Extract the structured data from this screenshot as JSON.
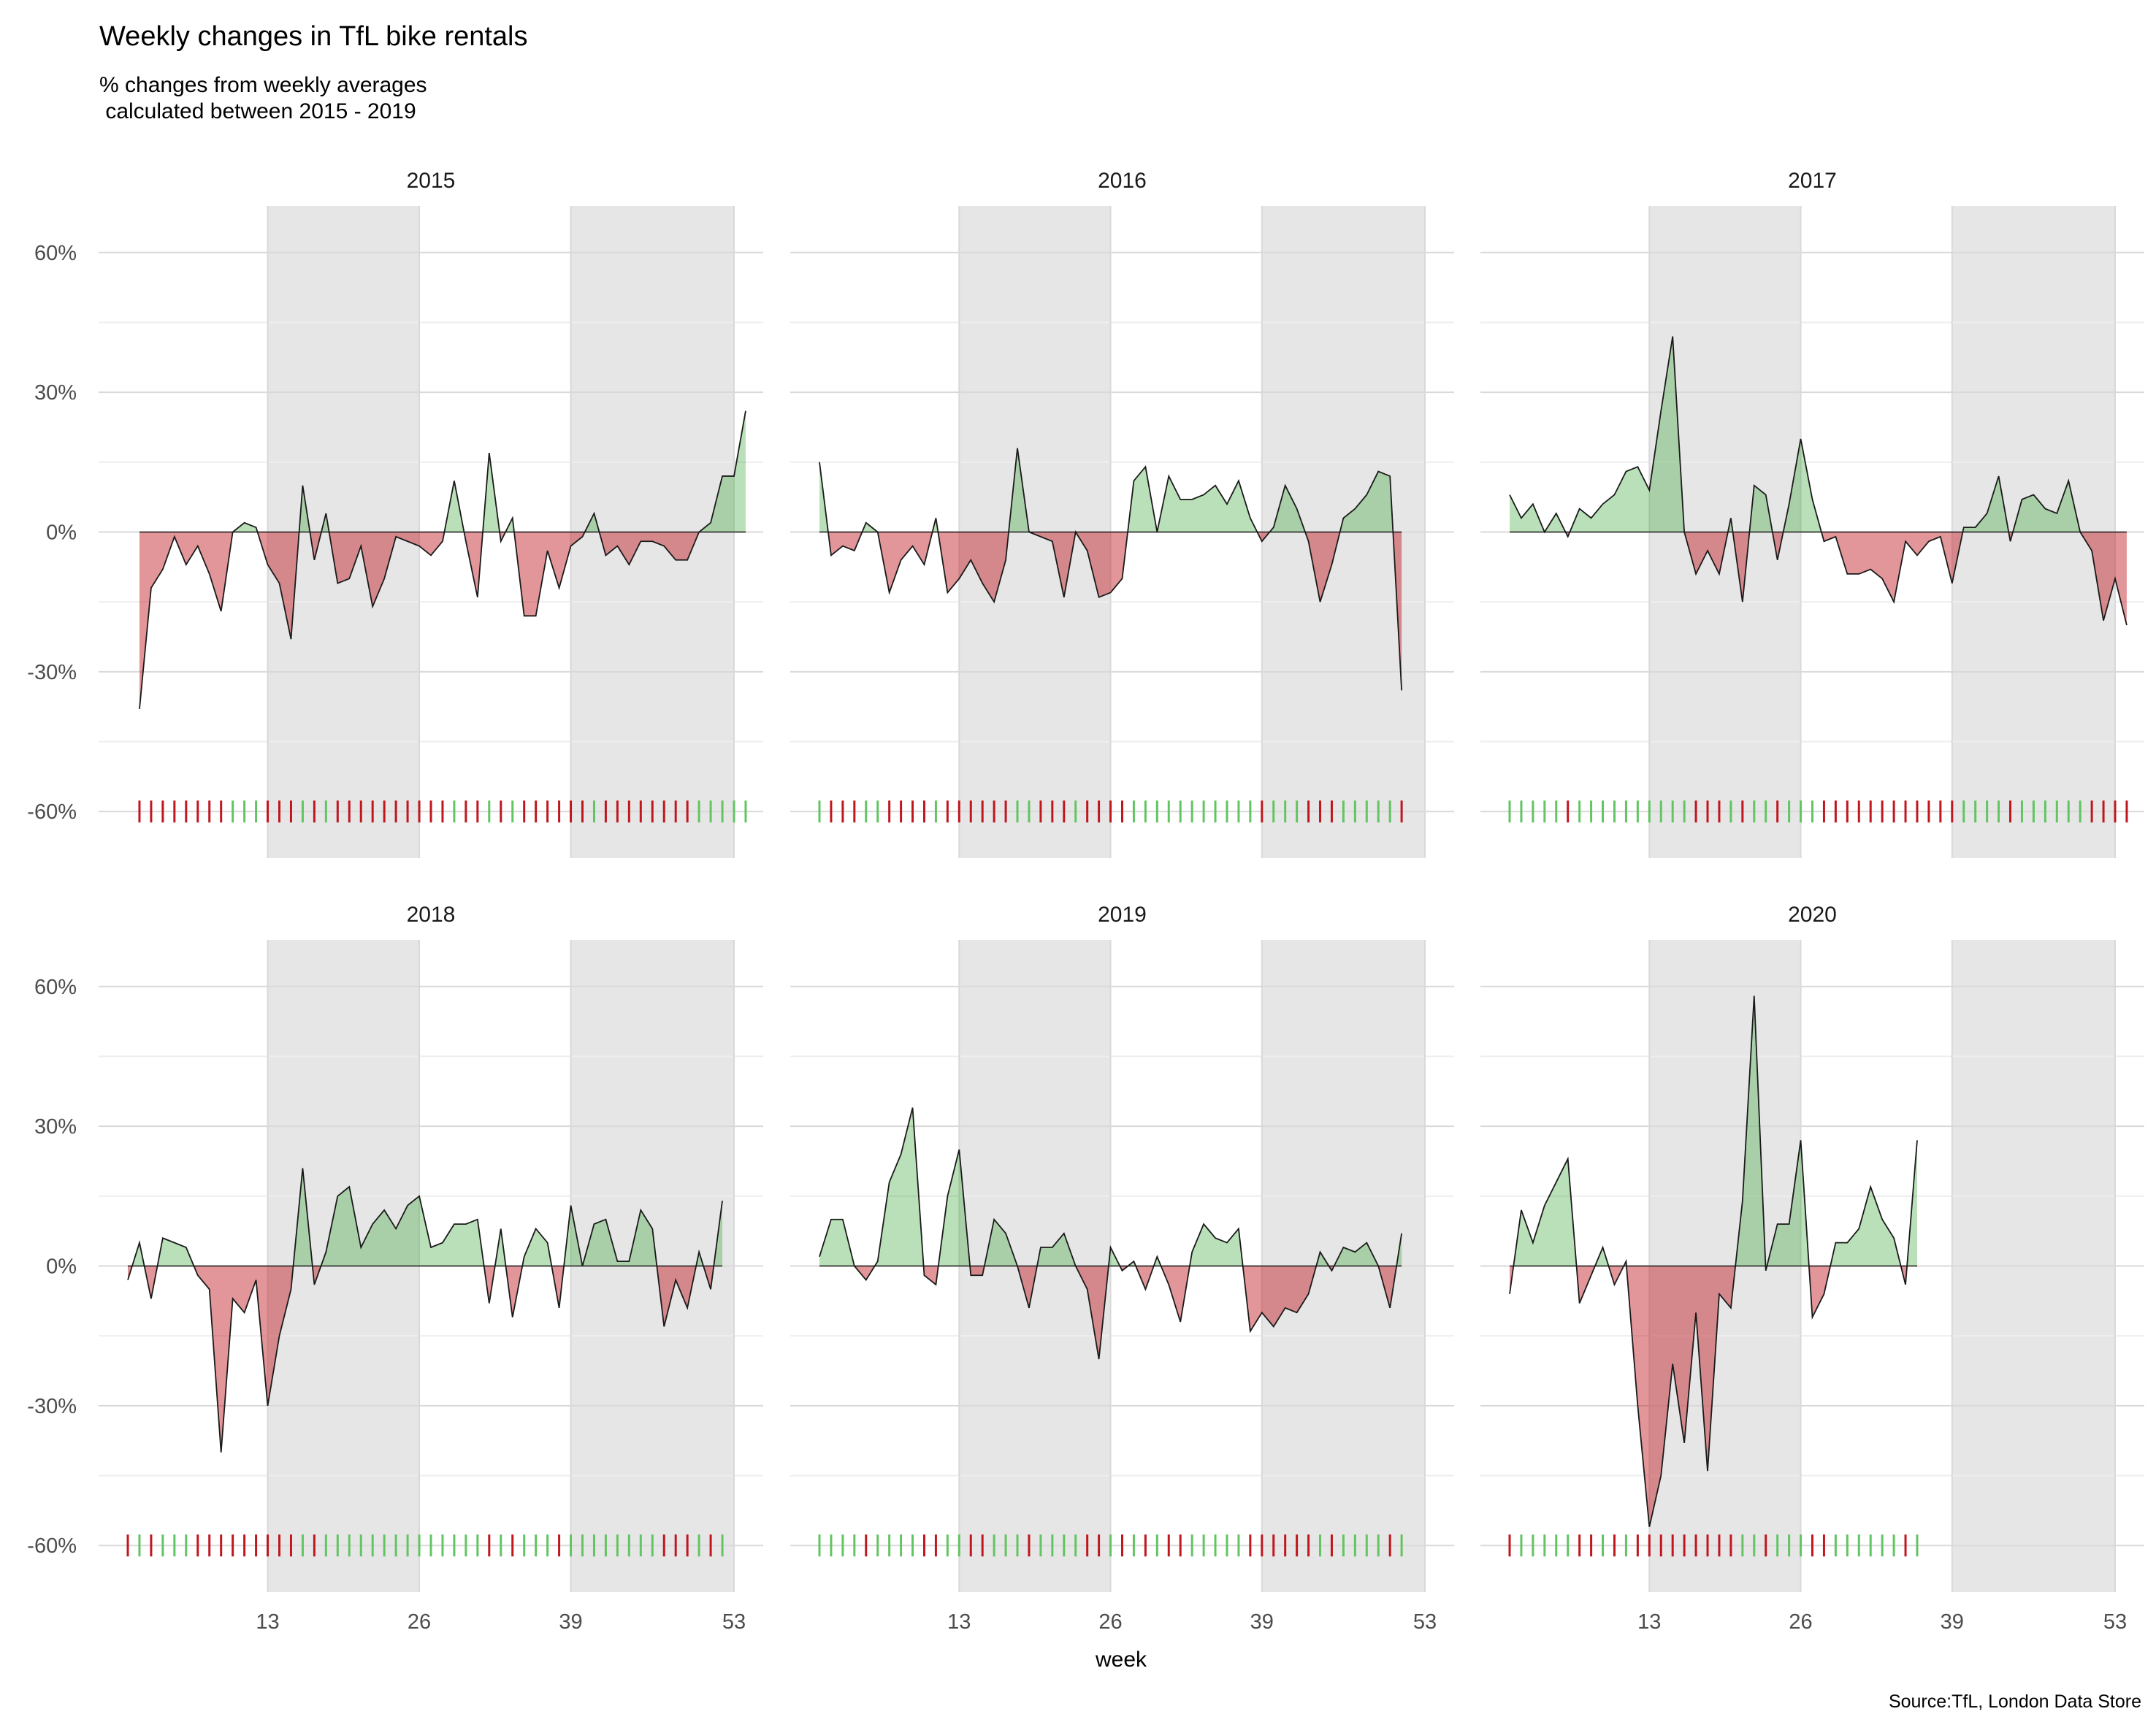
{
  "title": "Weekly changes in TfL bike rentals",
  "subtitle_line1": "% changes from weekly averages",
  "subtitle_line2": " calculated between 2015 - 2019",
  "xlabel": "week",
  "caption": "Source:TfL, London Data Store",
  "colors": {
    "positive": "#2ca02c",
    "negative": "#c0161e",
    "line": "#1a1a1a",
    "shade": "#e6e6e6",
    "grid": "#d9d9d9"
  },
  "chart_data": {
    "type": "area",
    "y_ticks": [
      "60%",
      "30%",
      "0%",
      "-30%",
      "-60%"
    ],
    "y_tick_values": [
      60,
      30,
      0,
      -30,
      -60
    ],
    "x_ticks": [
      "13",
      "26",
      "39",
      "53"
    ],
    "x_tick_values": [
      13,
      26,
      39,
      53
    ],
    "ylim": [
      -60,
      60
    ],
    "xlim": [
      1,
      53
    ],
    "shaded_weeks": [
      [
        13,
        26
      ],
      [
        39,
        53
      ]
    ],
    "baseline": 0,
    "rug": "one tick per week at -60%, green where the week is above average, red where below",
    "panels": [
      {
        "year": "2015",
        "start_week": 2,
        "values": [
          -38,
          -12,
          -8,
          -1,
          -7,
          -3,
          -9,
          -17,
          0,
          2,
          1,
          -7,
          -11,
          -23,
          10,
          -6,
          4,
          -11,
          -10,
          -3,
          -16,
          -10,
          -1,
          -2,
          -3,
          -5,
          -2,
          11,
          -2,
          -14,
          17,
          -2,
          3,
          -18,
          -18,
          -4,
          -12,
          -3,
          -1,
          4,
          -5,
          -3,
          -7,
          -2,
          -2,
          -3,
          -6,
          -6,
          0,
          2,
          12,
          12,
          26
        ]
      },
      {
        "year": "2016",
        "start_week": 1,
        "values": [
          15,
          -5,
          -3,
          -4,
          2,
          0,
          -13,
          -6,
          -3,
          -7,
          3,
          -13,
          -10,
          -6,
          -11,
          -15,
          -6,
          18,
          0,
          -1,
          -2,
          -14,
          0,
          -4,
          -14,
          -13,
          -10,
          11,
          14,
          0,
          12,
          7,
          7,
          8,
          10,
          6,
          11,
          3,
          -2,
          1,
          10,
          5,
          -2,
          -15,
          -7,
          3,
          5,
          8,
          13,
          12,
          -34
        ]
      },
      {
        "year": "2017",
        "start_week": 1,
        "values": [
          8,
          3,
          6,
          0,
          4,
          -1,
          5,
          3,
          6,
          8,
          13,
          14,
          9,
          26,
          42,
          0,
          -9,
          -4,
          -9,
          3,
          -15,
          10,
          8,
          -6,
          6,
          20,
          7,
          -2,
          -1,
          -9,
          -9,
          -8,
          -10,
          -15,
          -2,
          -5,
          -2,
          -1,
          -11,
          1,
          1,
          4,
          12,
          -2,
          7,
          8,
          5,
          4,
          11,
          0,
          -4,
          -19,
          -10,
          -20
        ]
      },
      {
        "year": "2018",
        "start_week": 1,
        "values": [
          -3,
          5,
          -7,
          6,
          5,
          4,
          -2,
          -5,
          -40,
          -7,
          -10,
          -3,
          -30,
          -15,
          -5,
          21,
          -4,
          3,
          15,
          17,
          4,
          9,
          12,
          8,
          13,
          15,
          4,
          5,
          9,
          9,
          10,
          -8,
          8,
          -11,
          2,
          8,
          5,
          -9,
          13,
          0,
          9,
          10,
          1,
          1,
          12,
          8,
          -13,
          -3,
          -9,
          3,
          -5,
          14
        ]
      },
      {
        "year": "2019",
        "start_week": 1,
        "values": [
          2,
          10,
          10,
          0,
          -3,
          1,
          18,
          24,
          34,
          -2,
          -4,
          15,
          25,
          -2,
          -2,
          10,
          7,
          0,
          -9,
          4,
          4,
          7,
          0,
          -5,
          -20,
          4,
          -1,
          1,
          -5,
          2,
          -4,
          -12,
          3,
          9,
          6,
          5,
          8,
          -14,
          -10,
          -13,
          -9,
          -10,
          -6,
          3,
          -1,
          4,
          3,
          5,
          0,
          -9,
          7
        ]
      },
      {
        "year": "2020",
        "start_week": 1,
        "values": [
          -6,
          12,
          5,
          13,
          18,
          23,
          -8,
          -2,
          4,
          -4,
          1,
          -30,
          -56,
          -45,
          -21,
          -38,
          -10,
          -44,
          -6,
          -9,
          14,
          58,
          -1,
          9,
          9,
          27,
          -11,
          -6,
          5,
          5,
          8,
          17,
          10,
          6,
          -4,
          27
        ]
      }
    ]
  }
}
